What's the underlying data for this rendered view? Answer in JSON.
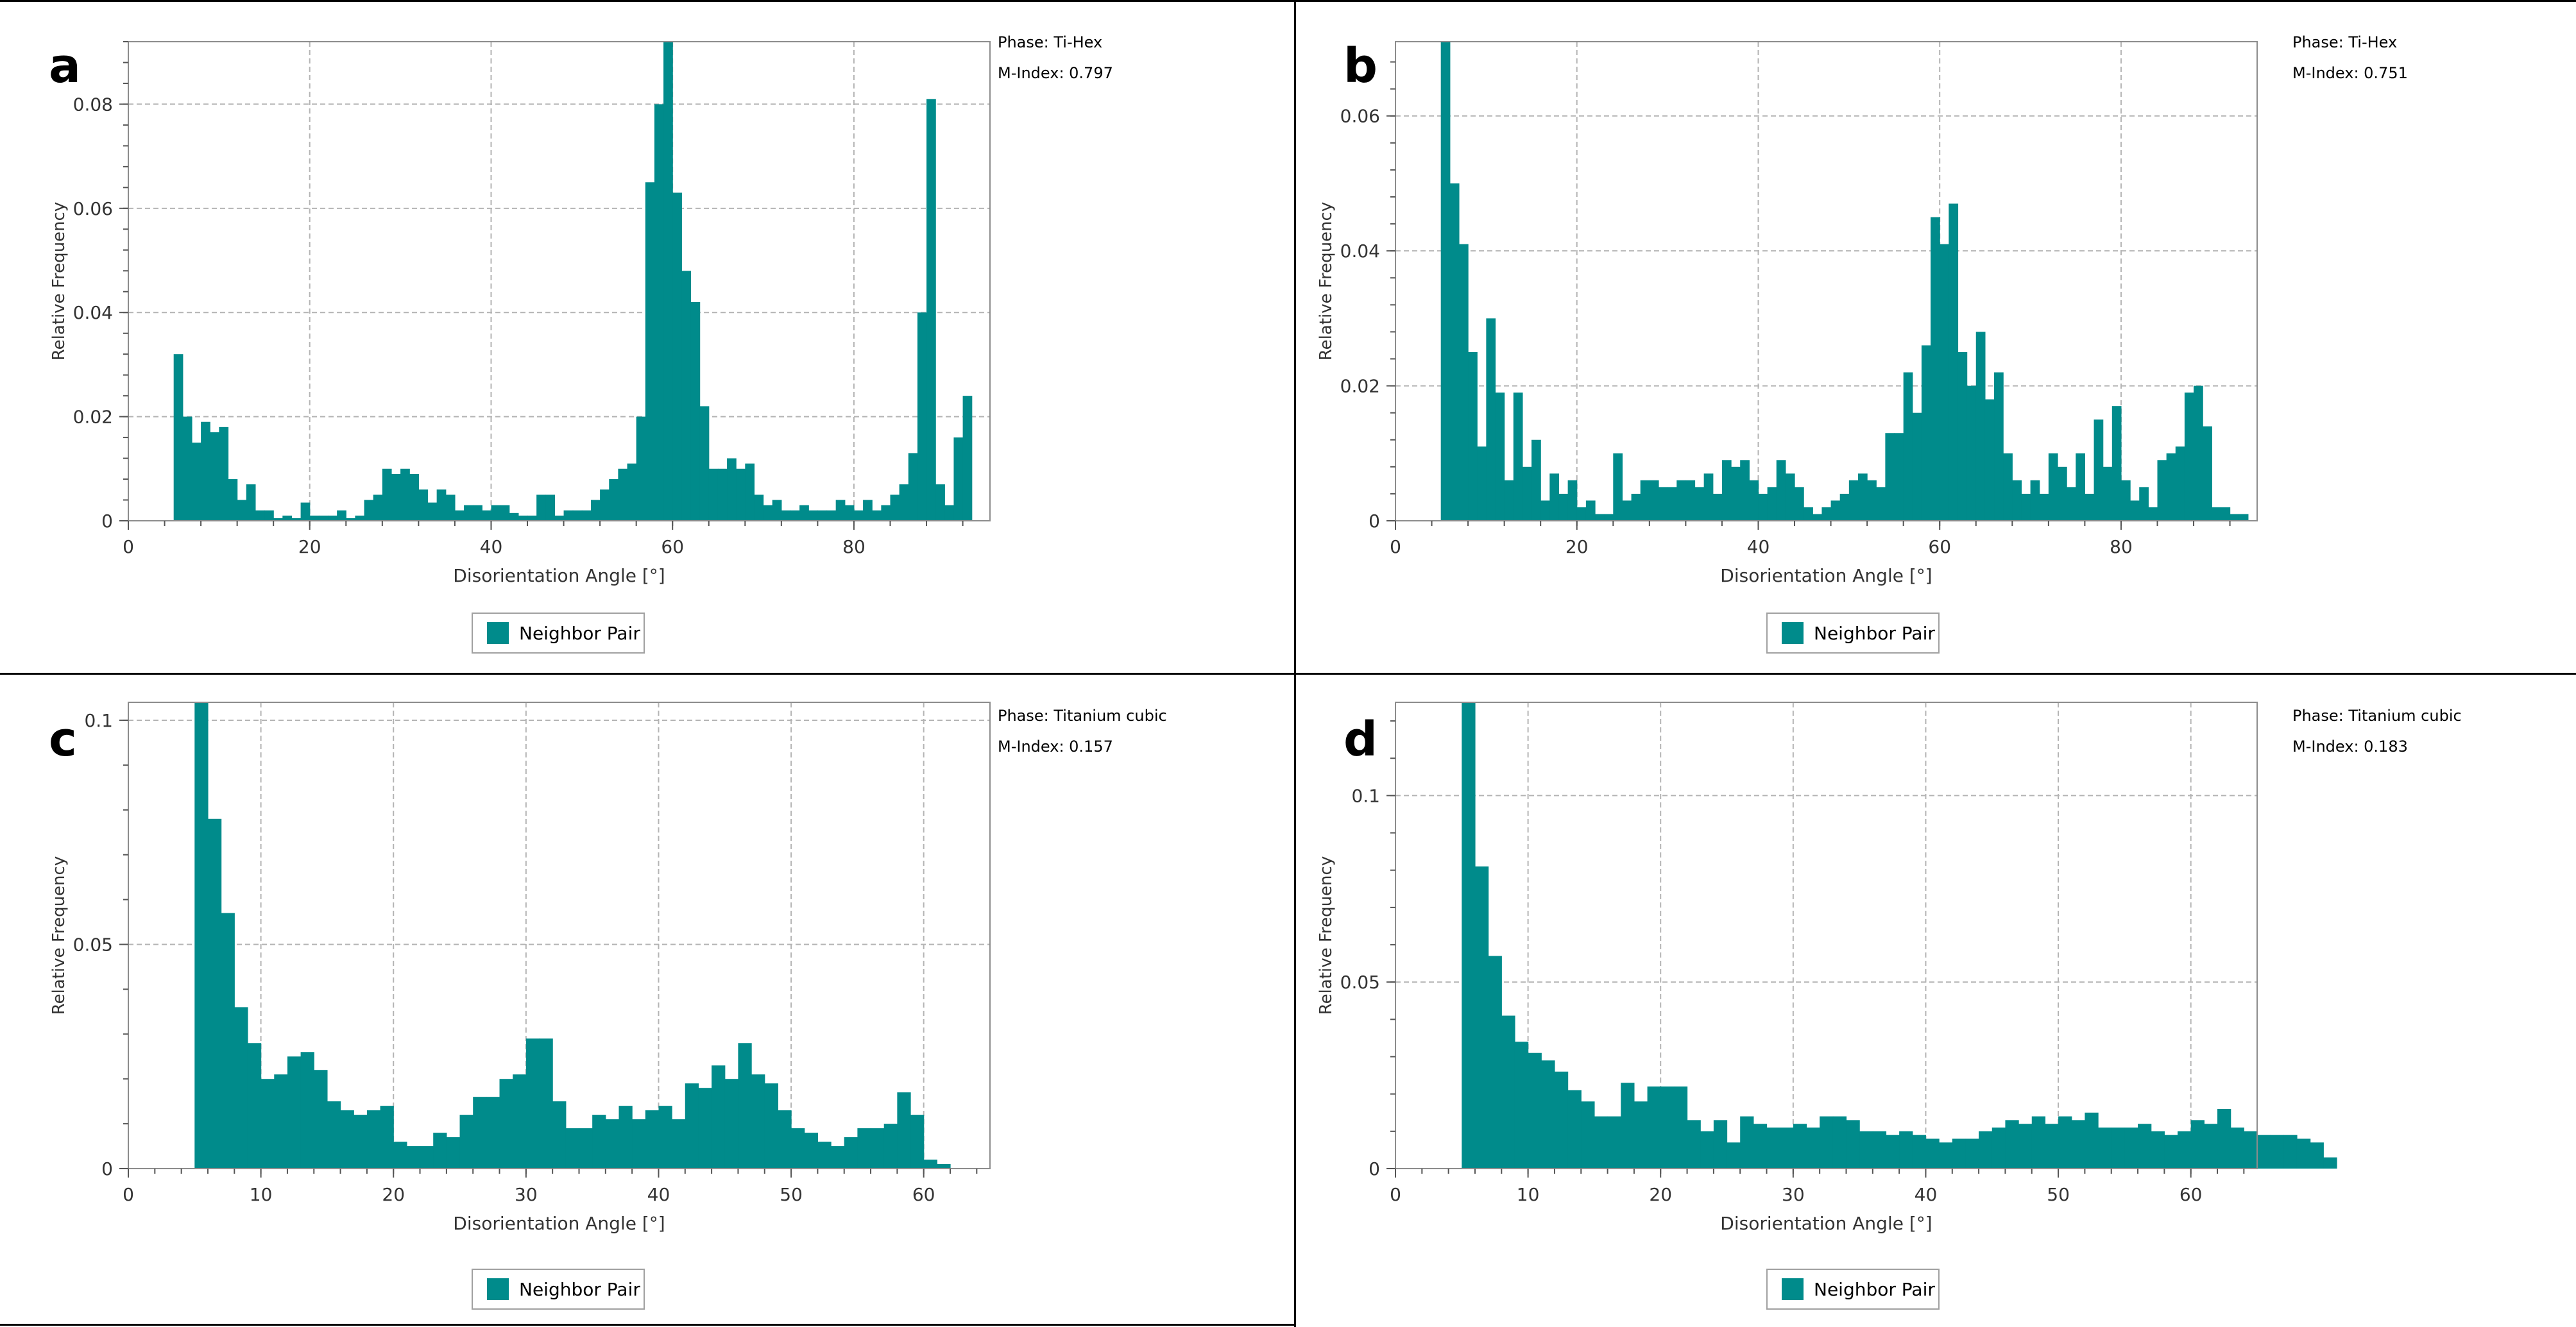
{
  "bar_color": "#008b8b",
  "grid_color": "#b4b4b4",
  "chart_data": [
    {
      "id": "a",
      "type": "bar",
      "panel_label": "a",
      "phase_text": "Phase: Ti-Hex",
      "mindex_text": "M-Index: 0.797",
      "xlabel": "Disorientation Angle [°]",
      "ylabel": "Relative Frequency",
      "legend": "Neighbor Pair",
      "xlim": [
        0,
        95
      ],
      "ylim": [
        0,
        0.092
      ],
      "xticks": [
        0,
        20,
        40,
        60,
        80
      ],
      "yticks": [
        0,
        0.02,
        0.04,
        0.06,
        0.08
      ],
      "ytick_labels": [
        "0",
        "0.02",
        "0.04",
        "0.06",
        "0.08"
      ],
      "bin_start": 5,
      "bin_width": 1,
      "values": [
        0.032,
        0.02,
        0.015,
        0.019,
        0.017,
        0.018,
        0.008,
        0.004,
        0.007,
        0.002,
        0.002,
        0.0005,
        0.001,
        0.0005,
        0.0035,
        0.001,
        0.001,
        0.001,
        0.002,
        0.0005,
        0.001,
        0.004,
        0.005,
        0.01,
        0.009,
        0.01,
        0.009,
        0.006,
        0.0035,
        0.006,
        0.005,
        0.002,
        0.003,
        0.003,
        0.002,
        0.003,
        0.003,
        0.0015,
        0.001,
        0.001,
        0.005,
        0.005,
        0.001,
        0.002,
        0.002,
        0.002,
        0.004,
        0.006,
        0.008,
        0.01,
        0.011,
        0.02,
        0.065,
        0.08,
        0.092,
        0.063,
        0.048,
        0.042,
        0.022,
        0.01,
        0.01,
        0.012,
        0.01,
        0.011,
        0.005,
        0.003,
        0.004,
        0.002,
        0.002,
        0.003,
        0.002,
        0.002,
        0.002,
        0.004,
        0.003,
        0.002,
        0.004,
        0.002,
        0.003,
        0.005,
        0.007,
        0.013,
        0.04,
        0.081,
        0.007,
        0.003,
        0.016,
        0.024
      ]
    },
    {
      "id": "b",
      "type": "bar",
      "panel_label": "b",
      "phase_text": "Phase: Ti-Hex",
      "mindex_text": "M-Index: 0.751",
      "xlabel": "Disorientation Angle [°]",
      "ylabel": "Relative Frequency",
      "legend": "Neighbor Pair",
      "xlim": [
        0,
        95
      ],
      "ylim": [
        0,
        0.071
      ],
      "xticks": [
        0,
        20,
        40,
        60,
        80
      ],
      "yticks": [
        0,
        0.02,
        0.04,
        0.06
      ],
      "ytick_labels": [
        "0",
        "0.02",
        "0.04",
        "0.06"
      ],
      "bin_start": 5,
      "bin_width": 1,
      "values": [
        0.071,
        0.05,
        0.041,
        0.025,
        0.011,
        0.03,
        0.019,
        0.006,
        0.019,
        0.008,
        0.012,
        0.003,
        0.007,
        0.004,
        0.006,
        0.002,
        0.003,
        0.001,
        0.001,
        0.01,
        0.003,
        0.004,
        0.006,
        0.006,
        0.005,
        0.005,
        0.006,
        0.006,
        0.005,
        0.007,
        0.004,
        0.009,
        0.008,
        0.009,
        0.006,
        0.004,
        0.005,
        0.009,
        0.007,
        0.005,
        0.002,
        0.001,
        0.002,
        0.003,
        0.004,
        0.006,
        0.007,
        0.006,
        0.005,
        0.013,
        0.013,
        0.022,
        0.016,
        0.026,
        0.045,
        0.041,
        0.047,
        0.025,
        0.02,
        0.028,
        0.018,
        0.022,
        0.01,
        0.006,
        0.004,
        0.006,
        0.004,
        0.01,
        0.008,
        0.005,
        0.01,
        0.004,
        0.015,
        0.008,
        0.017,
        0.006,
        0.003,
        0.005,
        0.002,
        0.009,
        0.01,
        0.011,
        0.019,
        0.02,
        0.014,
        0.002,
        0.002,
        0.001,
        0.001
      ]
    },
    {
      "id": "c",
      "type": "bar",
      "panel_label": "c",
      "phase_text": "Phase: Titanium cubic",
      "mindex_text": "M-Index: 0.157",
      "xlabel": "Disorientation Angle [°]",
      "ylabel": "Relative Frequency",
      "legend": "Neighbor Pair",
      "xlim": [
        0,
        65
      ],
      "ylim": [
        0,
        0.104
      ],
      "xticks": [
        0,
        10,
        20,
        30,
        40,
        50,
        60
      ],
      "yticks": [
        0,
        0.05,
        0.1
      ],
      "ytick_labels": [
        "0",
        "0.05",
        "0.1"
      ],
      "bin_start": 5,
      "bin_width": 1,
      "values": [
        0.104,
        0.078,
        0.057,
        0.036,
        0.028,
        0.02,
        0.021,
        0.025,
        0.026,
        0.022,
        0.015,
        0.013,
        0.012,
        0.013,
        0.014,
        0.006,
        0.005,
        0.005,
        0.008,
        0.007,
        0.012,
        0.016,
        0.016,
        0.02,
        0.021,
        0.029,
        0.029,
        0.015,
        0.009,
        0.009,
        0.012,
        0.011,
        0.014,
        0.011,
        0.013,
        0.014,
        0.011,
        0.019,
        0.018,
        0.023,
        0.02,
        0.028,
        0.021,
        0.019,
        0.013,
        0.009,
        0.008,
        0.006,
        0.005,
        0.007,
        0.009,
        0.009,
        0.01,
        0.017,
        0.012,
        0.002,
        0.001
      ]
    },
    {
      "id": "d",
      "type": "bar",
      "panel_label": "d",
      "phase_text": "Phase: Titanium cubic",
      "mindex_text": "M-Index: 0.183",
      "xlabel": "Disorientation Angle [°]",
      "ylabel": "Relative Frequency",
      "legend": "Neighbor Pair",
      "xlim": [
        0,
        65
      ],
      "ylim": [
        0,
        0.125
      ],
      "xticks": [
        0,
        10,
        20,
        30,
        40,
        50,
        60
      ],
      "yticks": [
        0,
        0.05,
        0.1
      ],
      "ytick_labels": [
        "0",
        "0.05",
        "0.1"
      ],
      "bin_start": 5,
      "bin_width": 1,
      "values": [
        0.125,
        0.081,
        0.057,
        0.041,
        0.034,
        0.031,
        0.029,
        0.026,
        0.021,
        0.018,
        0.014,
        0.014,
        0.023,
        0.018,
        0.022,
        0.022,
        0.022,
        0.013,
        0.01,
        0.013,
        0.007,
        0.014,
        0.012,
        0.011,
        0.011,
        0.012,
        0.011,
        0.014,
        0.014,
        0.013,
        0.01,
        0.01,
        0.009,
        0.01,
        0.009,
        0.008,
        0.007,
        0.008,
        0.008,
        0.01,
        0.011,
        0.013,
        0.012,
        0.014,
        0.012,
        0.014,
        0.013,
        0.015,
        0.011,
        0.011,
        0.011,
        0.012,
        0.01,
        0.009,
        0.01,
        0.013,
        0.012,
        0.016,
        0.011,
        0.01,
        0.009,
        0.009,
        0.009,
        0.008,
        0.007,
        0.003
      ]
    }
  ]
}
